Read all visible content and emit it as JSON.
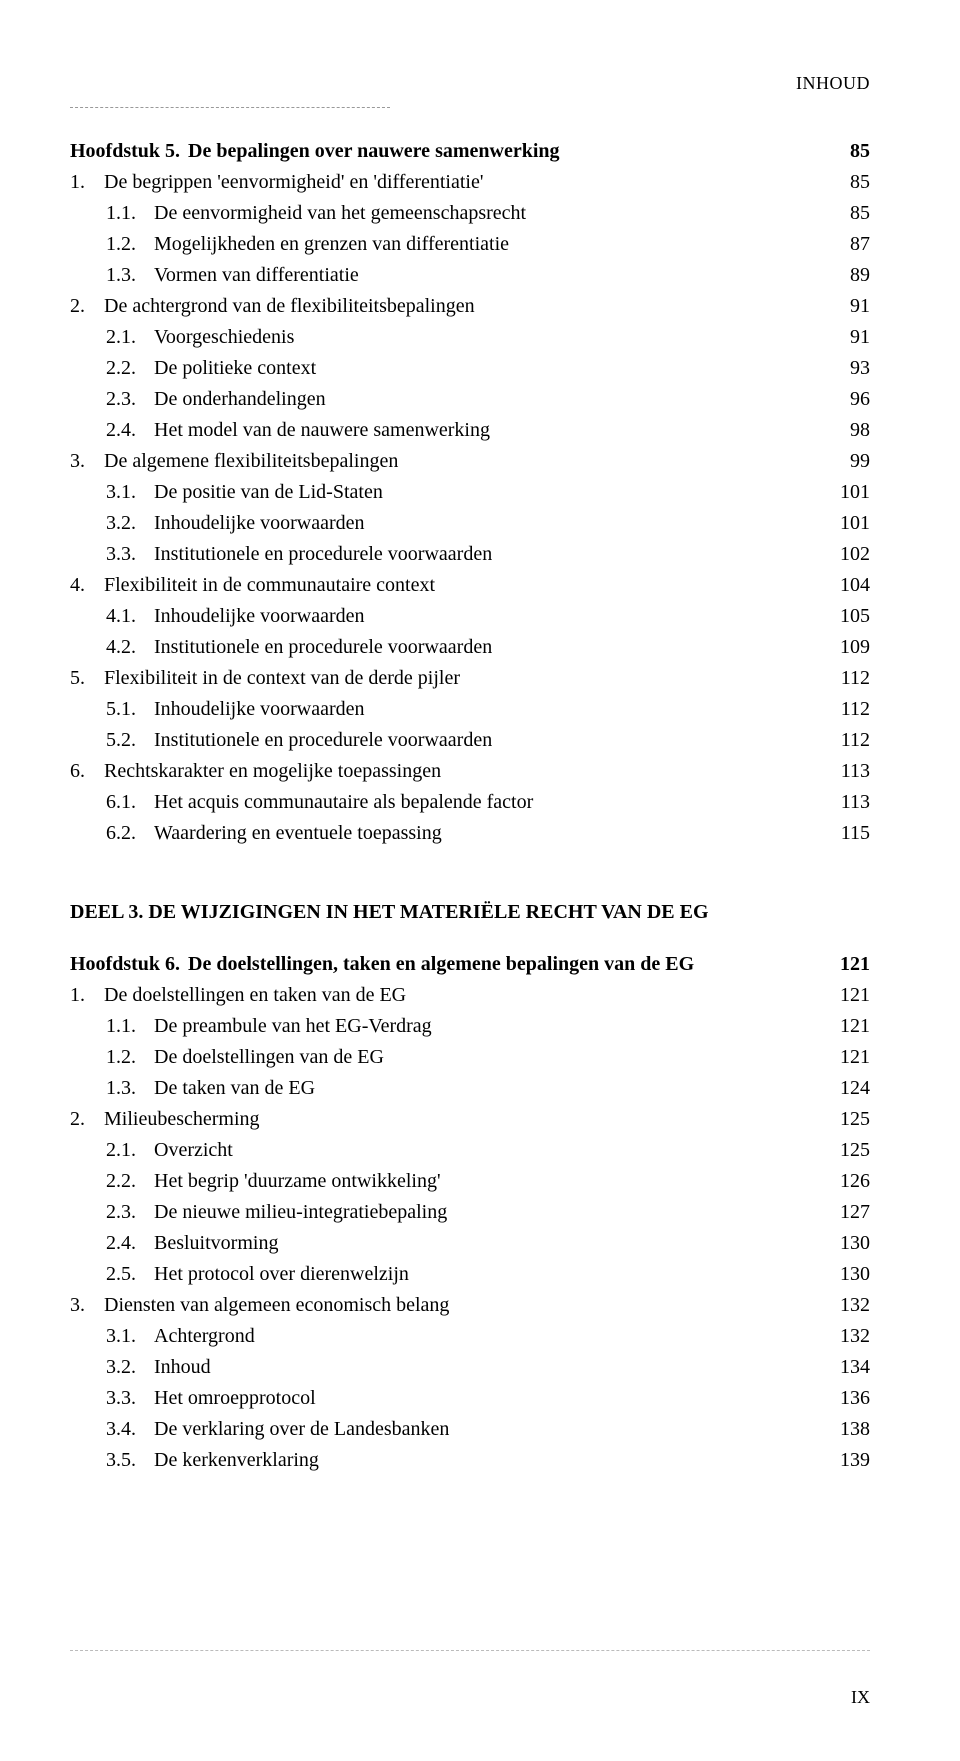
{
  "header": "INHOUD",
  "page_number": "IX",
  "chapter5": {
    "heading_num": "Hoofdstuk 5.",
    "heading_title": "De bepalingen over nauwere samenwerking",
    "heading_page": "85",
    "items": [
      {
        "num": "1.",
        "title": "De begrippen 'eenvormigheid' en 'differentiatie'",
        "page": "85",
        "indent": 1
      },
      {
        "num": "1.1.",
        "title": "De eenvormigheid van het gemeenschapsrecht",
        "page": "85",
        "indent": 2
      },
      {
        "num": "1.2.",
        "title": "Mogelijkheden en grenzen van differentiatie",
        "page": "87",
        "indent": 2
      },
      {
        "num": "1.3.",
        "title": "Vormen van differentiatie",
        "page": "89",
        "indent": 2
      },
      {
        "num": "2.",
        "title": "De achtergrond van de flexibiliteitsbepalingen",
        "page": "91",
        "indent": 1
      },
      {
        "num": "2.1.",
        "title": "Voorgeschiedenis",
        "page": "91",
        "indent": 2
      },
      {
        "num": "2.2.",
        "title": "De politieke context",
        "page": "93",
        "indent": 2
      },
      {
        "num": "2.3.",
        "title": "De onderhandelingen",
        "page": "96",
        "indent": 2
      },
      {
        "num": "2.4.",
        "title": "Het model van de nauwere samenwerking",
        "page": "98",
        "indent": 2
      },
      {
        "num": "3.",
        "title": "De algemene flexibiliteitsbepalingen",
        "page": "99",
        "indent": 1
      },
      {
        "num": "3.1.",
        "title": "De positie van de Lid-Staten",
        "page": "101",
        "indent": 2
      },
      {
        "num": "3.2.",
        "title": "Inhoudelijke voorwaarden",
        "page": "101",
        "indent": 2
      },
      {
        "num": "3.3.",
        "title": "Institutionele en procedurele voorwaarden",
        "page": "102",
        "indent": 2
      },
      {
        "num": "4.",
        "title": "Flexibiliteit in de communautaire context",
        "page": "104",
        "indent": 1
      },
      {
        "num": "4.1.",
        "title": "Inhoudelijke voorwaarden",
        "page": "105",
        "indent": 2
      },
      {
        "num": "4.2.",
        "title": "Institutionele en procedurele voorwaarden",
        "page": "109",
        "indent": 2
      },
      {
        "num": "5.",
        "title": "Flexibiliteit in de context van de derde pijler",
        "page": "112",
        "indent": 1
      },
      {
        "num": "5.1.",
        "title": "Inhoudelijke voorwaarden",
        "page": "112",
        "indent": 2
      },
      {
        "num": "5.2.",
        "title": "Institutionele en procedurele voorwaarden",
        "page": "112",
        "indent": 2
      },
      {
        "num": "6.",
        "title": "Rechtskarakter en mogelijke toepassingen",
        "page": "113",
        "indent": 1
      },
      {
        "num": "6.1.",
        "title": "Het acquis communautaire als bepalende factor",
        "page": "113",
        "indent": 2
      },
      {
        "num": "6.2.",
        "title": "Waardering en eventuele toepassing",
        "page": "115",
        "indent": 2
      }
    ]
  },
  "part3_title": "DEEL 3.  DE WIJZIGINGEN IN HET MATERIËLE RECHT VAN DE EG",
  "chapter6": {
    "heading_num": "Hoofdstuk 6.",
    "heading_title": "De doelstellingen, taken en algemene bepalingen van de EG",
    "heading_page": "121",
    "items": [
      {
        "num": "1.",
        "title": "De doelstellingen en taken van de EG",
        "page": "121",
        "indent": 1
      },
      {
        "num": "1.1.",
        "title": "De preambule van het EG-Verdrag",
        "page": "121",
        "indent": 2
      },
      {
        "num": "1.2.",
        "title": "De doelstellingen van de EG",
        "page": "121",
        "indent": 2
      },
      {
        "num": "1.3.",
        "title": "De taken van de EG",
        "page": "124",
        "indent": 2
      },
      {
        "num": "2.",
        "title": "Milieubescherming",
        "page": "125",
        "indent": 1
      },
      {
        "num": "2.1.",
        "title": "Overzicht",
        "page": "125",
        "indent": 2
      },
      {
        "num": "2.2.",
        "title": "Het begrip 'duurzame ontwikkeling'",
        "page": "126",
        "indent": 2
      },
      {
        "num": "2.3.",
        "title": "De nieuwe milieu-integratiebepaling",
        "page": "127",
        "indent": 2
      },
      {
        "num": "2.4.",
        "title": "Besluitvorming",
        "page": "130",
        "indent": 2
      },
      {
        "num": "2.5.",
        "title": "Het protocol over dierenwelzijn",
        "page": "130",
        "indent": 2
      },
      {
        "num": "3.",
        "title": "Diensten van algemeen economisch belang",
        "page": "132",
        "indent": 1
      },
      {
        "num": "3.1.",
        "title": "Achtergrond",
        "page": "132",
        "indent": 2
      },
      {
        "num": "3.2.",
        "title": "Inhoud",
        "page": "134",
        "indent": 2
      },
      {
        "num": "3.3.",
        "title": "Het omroepprotocol",
        "page": "136",
        "indent": 2
      },
      {
        "num": "3.4.",
        "title": "De verklaring over de Landesbanken",
        "page": "138",
        "indent": 2
      },
      {
        "num": "3.5.",
        "title": "De kerkenverklaring",
        "page": "139",
        "indent": 2
      }
    ]
  }
}
